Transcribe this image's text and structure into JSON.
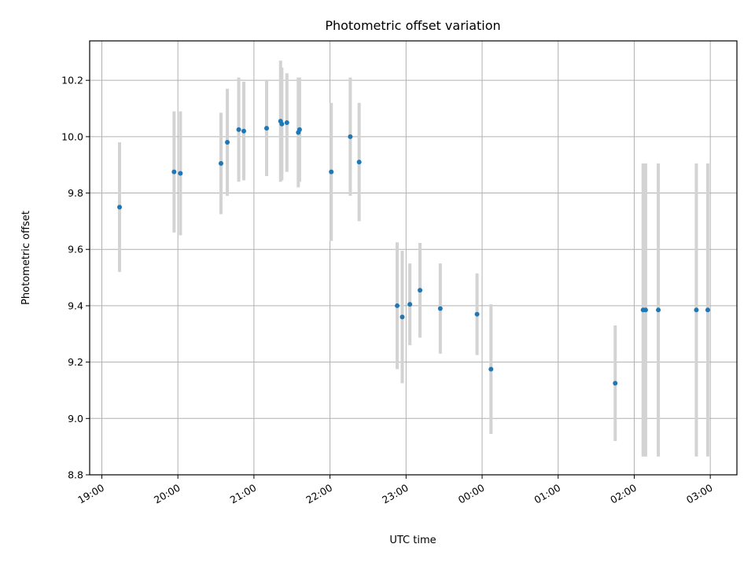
{
  "chart_data": {
    "type": "scatter",
    "title": "Photometric offset variation",
    "xlabel": "UTC time",
    "ylabel": "Photometric offset",
    "xlim_hours": [
      18.84,
      27.35
    ],
    "ylim": [
      8.8,
      10.34
    ],
    "grid": true,
    "x_ticks": [
      {
        "label": "19:00",
        "value": 19
      },
      {
        "label": "20:00",
        "value": 20
      },
      {
        "label": "21:00",
        "value": 21
      },
      {
        "label": "22:00",
        "value": 22
      },
      {
        "label": "23:00",
        "value": 23
      },
      {
        "label": "00:00",
        "value": 24
      },
      {
        "label": "01:00",
        "value": 25
      },
      {
        "label": "02:00",
        "value": 26
      },
      {
        "label": "03:00",
        "value": 27
      }
    ],
    "y_ticks": [
      {
        "label": "8.8",
        "value": 8.8
      },
      {
        "label": "9.0",
        "value": 9.0
      },
      {
        "label": "9.2",
        "value": 9.2
      },
      {
        "label": "9.4",
        "value": 9.4
      },
      {
        "label": "9.6",
        "value": 9.6
      },
      {
        "label": "9.8",
        "value": 9.8
      },
      {
        "label": "10.0",
        "value": 10.0
      },
      {
        "label": "10.2",
        "value": 10.2
      }
    ],
    "points": [
      {
        "x": "19:14",
        "y": 9.75,
        "err": 0.23
      },
      {
        "x": "19:57",
        "y": 9.875,
        "err": 0.215
      },
      {
        "x": "20:02",
        "y": 9.87,
        "err": 0.22
      },
      {
        "x": "20:34",
        "y": 9.905,
        "err": 0.18
      },
      {
        "x": "20:39",
        "y": 9.98,
        "err": 0.19
      },
      {
        "x": "20:48",
        "y": 10.025,
        "err": 0.185
      },
      {
        "x": "20:52",
        "y": 10.02,
        "err": 0.175
      },
      {
        "x": "21:10",
        "y": 10.03,
        "err": 0.17
      },
      {
        "x": "21:21",
        "y": 10.055,
        "err": 0.215
      },
      {
        "x": "21:22",
        "y": 10.045,
        "err": 0.2
      },
      {
        "x": "21:26",
        "y": 10.05,
        "err": 0.175
      },
      {
        "x": "21:35",
        "y": 10.015,
        "err": 0.195
      },
      {
        "x": "21:36",
        "y": 10.025,
        "err": 0.185
      },
      {
        "x": "22:01",
        "y": 9.875,
        "err": 0.245
      },
      {
        "x": "22:16",
        "y": 10.0,
        "err": 0.21
      },
      {
        "x": "22:23",
        "y": 9.91,
        "err": 0.21
      },
      {
        "x": "22:53",
        "y": 9.4,
        "err": 0.225
      },
      {
        "x": "22:57",
        "y": 9.36,
        "err": 0.235
      },
      {
        "x": "23:03",
        "y": 9.405,
        "err": 0.145
      },
      {
        "x": "23:11",
        "y": 9.455,
        "err": 0.168
      },
      {
        "x": "23:27",
        "y": 9.39,
        "err": 0.16
      },
      {
        "x": "23:56",
        "y": 9.37,
        "err": 0.145
      },
      {
        "x": "00:07",
        "y": 9.175,
        "err": 0.23
      },
      {
        "x": "01:45",
        "y": 9.125,
        "err": 0.205
      },
      {
        "x": "02:07",
        "y": 9.385,
        "err": 0.52
      },
      {
        "x": "02:09",
        "y": 9.385,
        "err": 0.52
      },
      {
        "x": "02:19",
        "y": 9.385,
        "err": 0.52
      },
      {
        "x": "02:49",
        "y": 9.385,
        "err": 0.52
      },
      {
        "x": "02:58",
        "y": 9.385,
        "err": 0.52
      }
    ],
    "colors": {
      "point": "#1f77b4",
      "errorbar": "#d3d3d3",
      "grid": "#b0b0b0"
    }
  }
}
